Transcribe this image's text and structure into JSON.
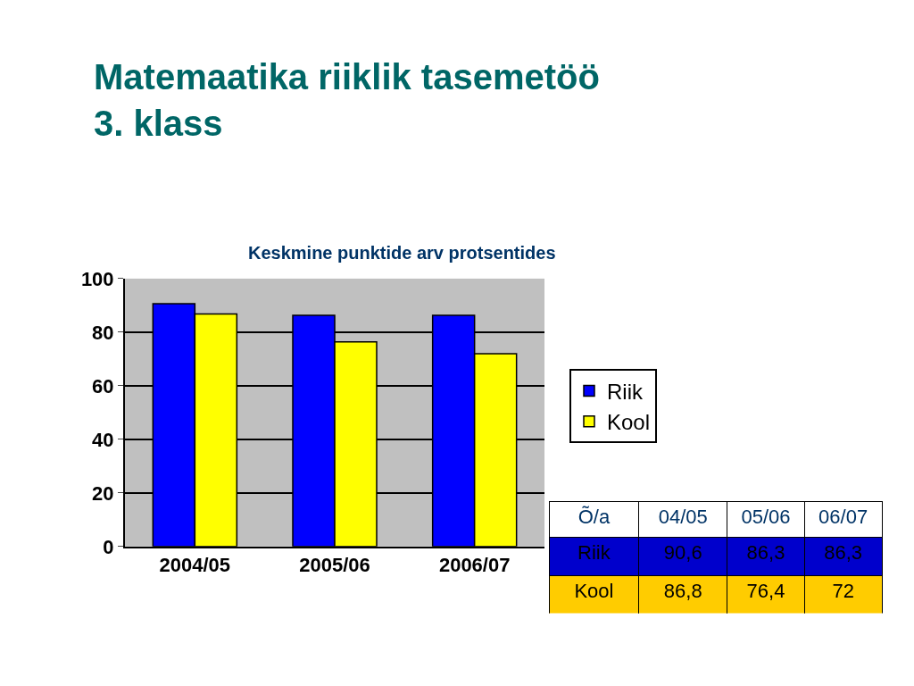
{
  "chart_data": {
    "type": "bar",
    "title": "Matemaatika riiklik tasemetöö\n3. klass",
    "subtitle": "Keskmine punktide arv protsentides",
    "categories": [
      "2004/05",
      "2005/06",
      "2006/07"
    ],
    "series": [
      {
        "name": "Riik",
        "color": "#0000ff",
        "values": [
          90.6,
          86.3,
          86.3
        ]
      },
      {
        "name": "Kool",
        "color": "#ffff00",
        "values": [
          86.8,
          76.4,
          72
        ]
      }
    ],
    "annotations": [
      "Õ/a",
      "04/05",
      "05/06",
      "06/07",
      "90,6",
      "86,3",
      "86,3",
      "86,8",
      "76,4",
      "72"
    ],
    "ylim": [
      0,
      100
    ],
    "yticks": [
      0,
      20,
      40,
      60,
      80,
      100
    ],
    "grid": "y",
    "legend": "right"
  }
}
